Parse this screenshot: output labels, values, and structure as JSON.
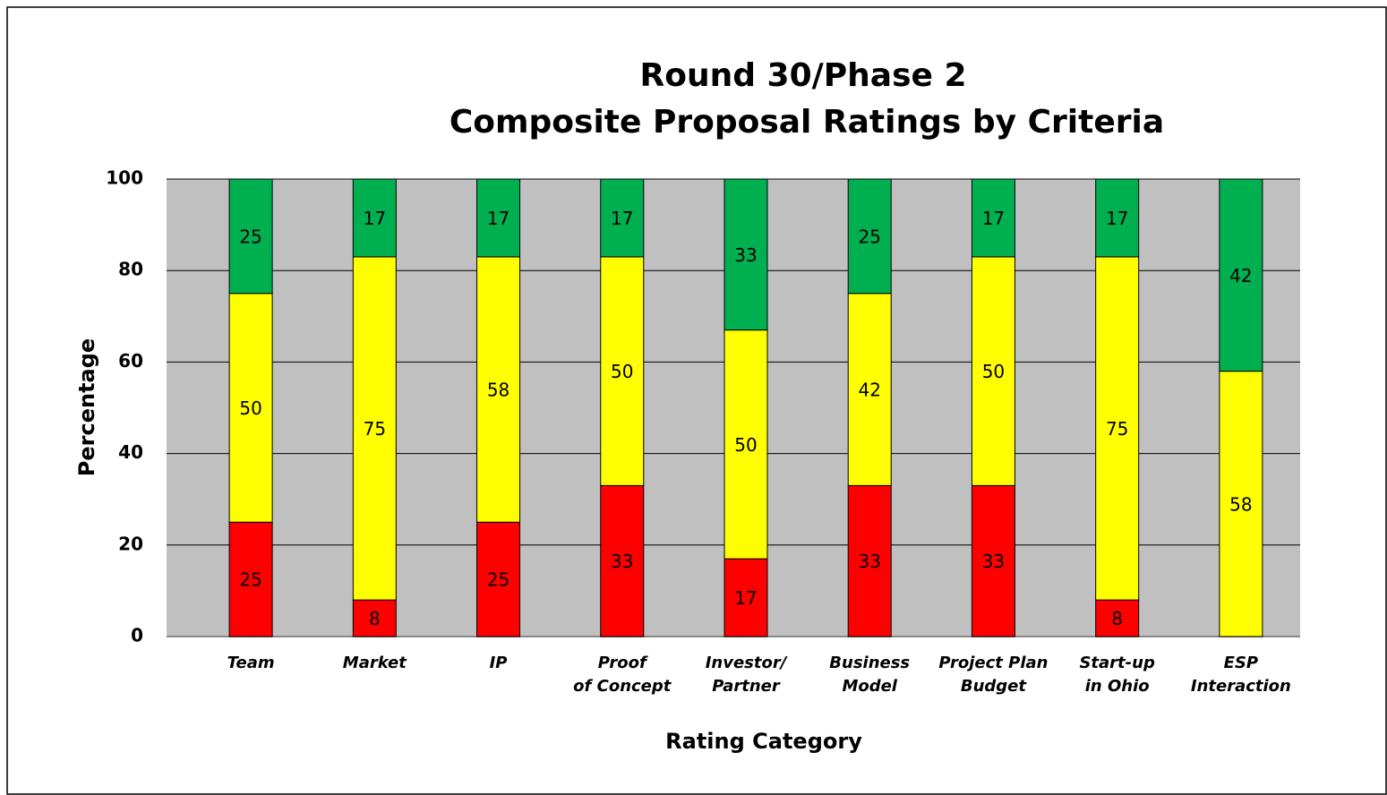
{
  "chart_data": {
    "type": "stacked_bar",
    "title": [
      "Round 30/Phase 2",
      "Composite Proposal Ratings by Criteria"
    ],
    "y_label": "Percentage",
    "x_label": "Rating Category",
    "categories": [
      "Team",
      "Market",
      "IP",
      "Proof\nof Concept",
      "Investor/\nPartner",
      "Business\nModel",
      "Project Plan\nBudget",
      "Start-up\nin Ohio",
      "ESP\nInteraction"
    ],
    "series": [
      {
        "color": "#ff0000",
        "values": [
          25,
          8,
          25,
          33,
          17,
          33,
          33,
          8,
          0
        ]
      },
      {
        "color": "#ffff00",
        "values": [
          50,
          75,
          58,
          50,
          50,
          42,
          50,
          75,
          58
        ]
      },
      {
        "color": "#00b050",
        "values": [
          25,
          17,
          17,
          17,
          33,
          25,
          17,
          17,
          42
        ]
      }
    ],
    "ylim": [
      0,
      100
    ],
    "yticks": [
      0,
      20,
      40,
      60,
      80,
      100
    ],
    "grid": true,
    "plot_background": "#c0c0c0"
  }
}
